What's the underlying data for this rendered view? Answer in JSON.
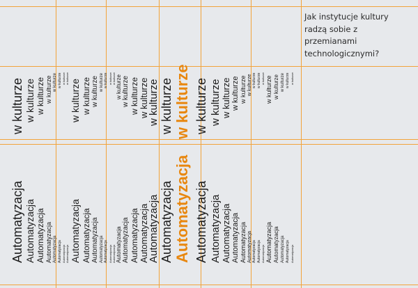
{
  "poster": {
    "question": "Jak instytucje kultury radzą sobie z przemianami technologicznymi?",
    "word_top": "w kulturze",
    "word_bottom": "Automatyzacja",
    "accent_color": "#e8870f",
    "grid_color": "#f2a33a",
    "background_color": "#e7e9ec",
    "text_color": "#1c1c1c"
  }
}
